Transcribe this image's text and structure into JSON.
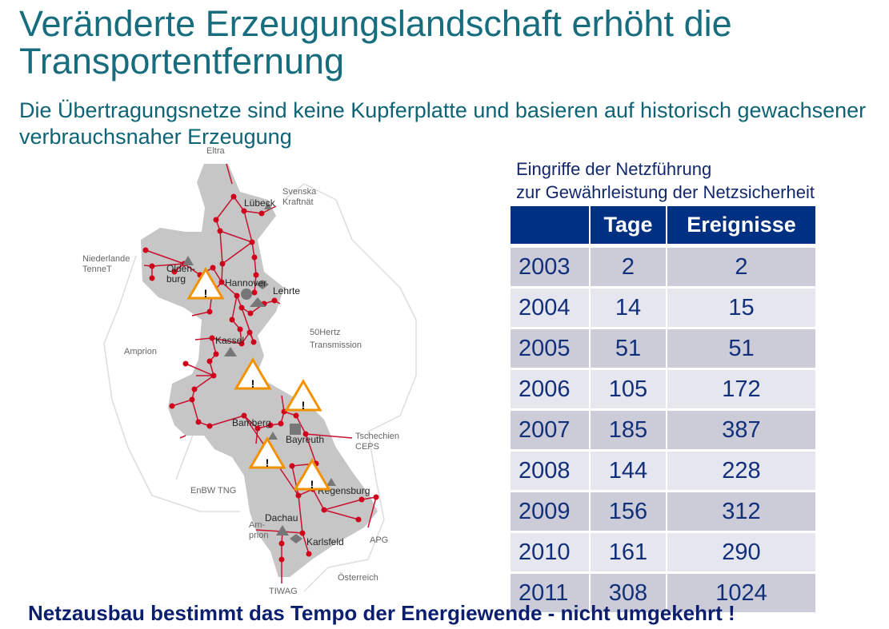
{
  "title": "Veränderte Erzeugungslandschaft erhöht die Transportentfernung",
  "subtitle": "Die Übertragungsnetze sind keine Kupferplatte und basieren auf  historisch gewachsener verbrauchsnaher Erzeugung",
  "map": {
    "operators": [
      "Eltra",
      "Svenska Kraftnät",
      "Niederlande TenneT",
      "Amprion",
      "50Hertz Transmission",
      "Tschechien CEPS",
      "EnBW TNG",
      "Am- prion",
      "APG",
      "Österreich",
      "TIWAG"
    ],
    "cities": [
      "Lübeck",
      "Olden- burg",
      "Hannover",
      "Lehrte",
      "Kassel",
      "Bamberg",
      "Bayreuth",
      "Regensburg",
      "Dachau",
      "Karlsfeld"
    ],
    "warning_symbol": "!",
    "colors": {
      "region": "#c6c6c6",
      "line": "#c8102e",
      "warning": "#f39200"
    }
  },
  "table": {
    "caption_line1": "Eingriffe der Netzführung",
    "caption_line2": "zur Gewährleistung der Netzsicherheit",
    "headers": [
      "",
      "Tage",
      "Ereignisse"
    ],
    "rows": [
      [
        "2003",
        "2",
        "2"
      ],
      [
        "2004",
        "14",
        "15"
      ],
      [
        "2005",
        "51",
        "51"
      ],
      [
        "2006",
        "105",
        "172"
      ],
      [
        "2007",
        "185",
        "387"
      ],
      [
        "2008",
        "144",
        "228"
      ],
      [
        "2009",
        "156",
        "312"
      ],
      [
        "2010",
        "161",
        "290"
      ],
      [
        "2011",
        "308",
        "1024"
      ]
    ]
  },
  "footer": "Netzausbau bestimmt das Tempo der Energiewende - nicht umgekehrt !"
}
